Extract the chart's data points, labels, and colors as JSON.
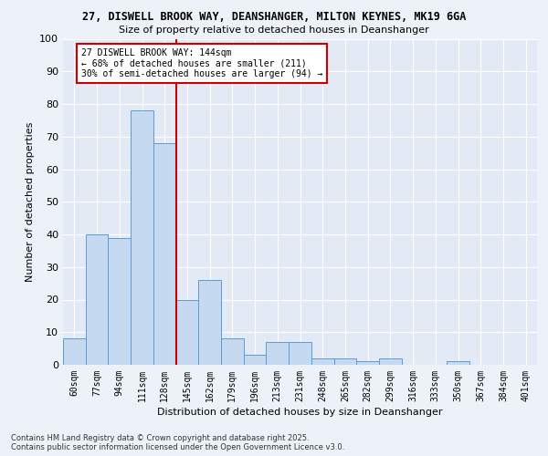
{
  "title_line1": "27, DISWELL BROOK WAY, DEANSHANGER, MILTON KEYNES, MK19 6GA",
  "title_line2": "Size of property relative to detached houses in Deanshanger",
  "xlabel": "Distribution of detached houses by size in Deanshanger",
  "ylabel": "Number of detached properties",
  "categories": [
    "60sqm",
    "77sqm",
    "94sqm",
    "111sqm",
    "128sqm",
    "145sqm",
    "162sqm",
    "179sqm",
    "196sqm",
    "213sqm",
    "231sqm",
    "248sqm",
    "265sqm",
    "282sqm",
    "299sqm",
    "316sqm",
    "333sqm",
    "350sqm",
    "367sqm",
    "384sqm",
    "401sqm"
  ],
  "values": [
    8,
    40,
    39,
    78,
    68,
    20,
    26,
    8,
    3,
    7,
    7,
    2,
    2,
    1,
    2,
    0,
    0,
    1,
    0,
    0,
    0
  ],
  "bar_color": "#c5d9f0",
  "bar_edge_color": "#5b9bd5",
  "vline_x_idx": 4.5,
  "vline_color": "#cc0000",
  "annotation_text": "27 DISWELL BROOK WAY: 144sqm\n← 68% of detached houses are smaller (211)\n30% of semi-detached houses are larger (94) →",
  "annotation_box_color": "#ffffff",
  "annotation_box_edge": "#cc0000",
  "ylim": [
    0,
    100
  ],
  "yticks": [
    0,
    10,
    20,
    30,
    40,
    50,
    60,
    70,
    80,
    90,
    100
  ],
  "footnote": "Contains HM Land Registry data © Crown copyright and database right 2025.\nContains public sector information licensed under the Open Government Licence v3.0.",
  "bg_color": "#edf1f8",
  "plot_bg_color": "#e4eaf5"
}
